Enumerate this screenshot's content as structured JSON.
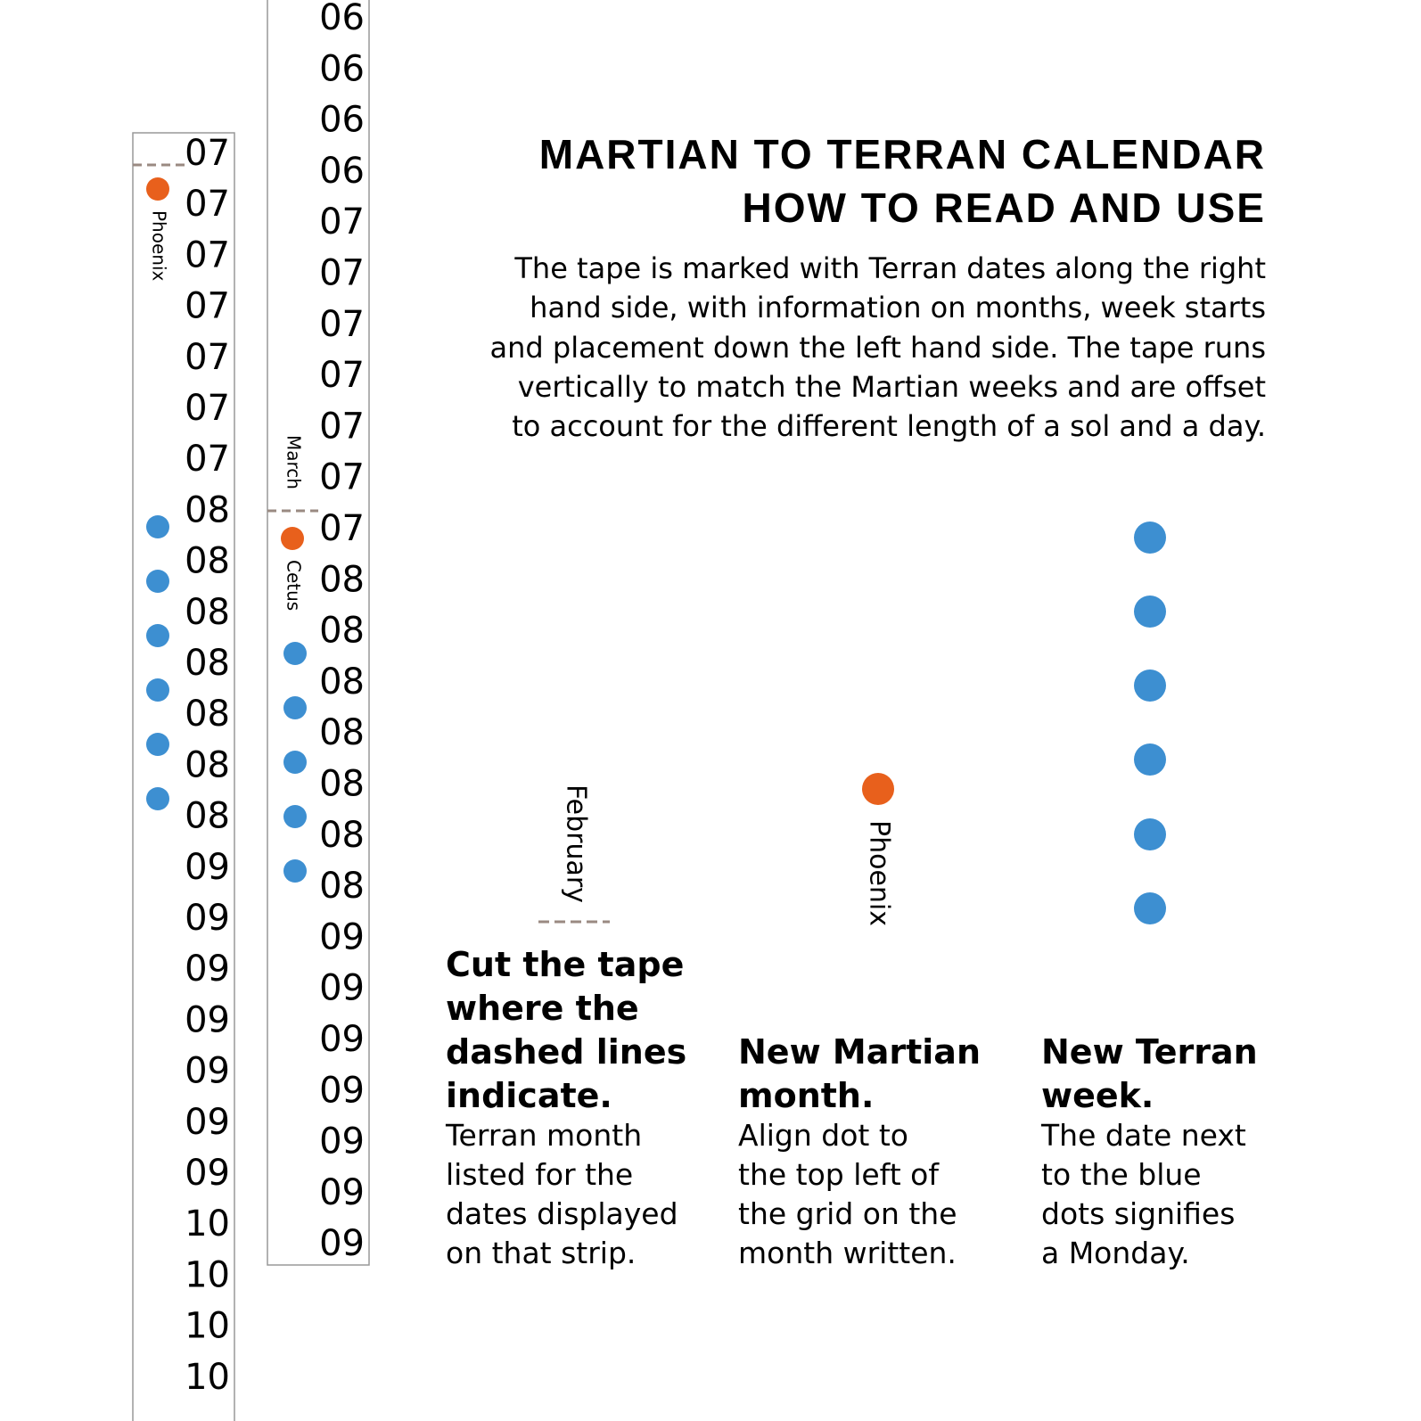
{
  "tapes": [
    {
      "dates": [
        "07",
        "07",
        "07",
        "07",
        "07",
        "07",
        "07",
        "08",
        "08",
        "08",
        "08",
        "08",
        "08",
        "08",
        "09",
        "09",
        "09",
        "09",
        "09",
        "09",
        "09",
        "10",
        "10",
        "10",
        "10"
      ],
      "labels": [
        "Phoenix"
      ]
    },
    {
      "dates": [
        "06",
        "06",
        "06",
        "06",
        "07",
        "07",
        "07",
        "07",
        "07",
        "07",
        "07",
        "08",
        "08",
        "08",
        "08",
        "08",
        "08",
        "08",
        "09",
        "09",
        "09",
        "09",
        "09",
        "09",
        "09"
      ],
      "labels": [
        "March",
        "Cetus"
      ]
    }
  ],
  "title": [
    "MARTIAN TO TERRAN CALENDAR",
    "HOW TO READ AND USE"
  ],
  "intro": [
    "The tape is marked with Terran dates along the right",
    "hand side, with information on months, week starts",
    "and placement down the left hand side. The tape runs",
    "vertically to match the Martian weeks and are offset",
    "to account for the different length of a sol and a day."
  ],
  "legend": {
    "month_label": "February",
    "constellation_label": "Phoenix",
    "items": [
      {
        "heading": [
          "Cut the tape",
          "where the",
          "dashed lines",
          "indicate."
        ],
        "text": [
          "Terran month",
          "listed for the",
          "dates displayed",
          "on that strip."
        ]
      },
      {
        "heading": [
          "New Martian",
          "month."
        ],
        "text": [
          "Align dot to",
          "the top left of",
          "the grid on the",
          "month written."
        ]
      },
      {
        "heading": [
          "New Terran",
          "week."
        ],
        "text": [
          "The date next",
          "to the blue",
          "dots signifies",
          "a Monday."
        ]
      }
    ]
  }
}
